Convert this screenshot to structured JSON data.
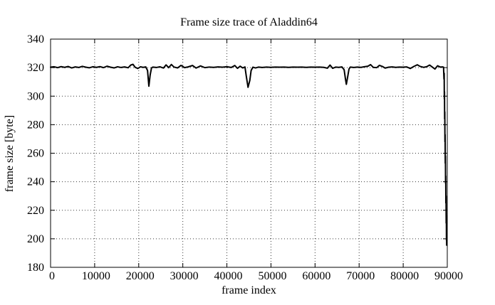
{
  "chart_data": {
    "type": "line",
    "title": "Frame size trace of Aladdin64",
    "xlabel": "frame index",
    "ylabel": "frame size [byte]",
    "xlim": [
      0,
      90000
    ],
    "ylim": [
      180,
      340
    ],
    "xticks": [
      0,
      10000,
      20000,
      30000,
      40000,
      50000,
      60000,
      70000,
      80000,
      90000
    ],
    "yticks": [
      180,
      200,
      220,
      240,
      260,
      280,
      300,
      320,
      340
    ],
    "grid": true,
    "legend": "none",
    "colors": {
      "line": "#000000",
      "frame": "#000000",
      "grid": "#3a3a3a",
      "text": "#000000",
      "background": "#ffffff"
    },
    "series_name": "frame size",
    "points": [
      [
        0,
        320.3
      ],
      [
        800,
        320.6
      ],
      [
        1600,
        320.0
      ],
      [
        2400,
        320.7
      ],
      [
        3200,
        320.2
      ],
      [
        4000,
        320.8
      ],
      [
        4800,
        319.8
      ],
      [
        5600,
        320.5
      ],
      [
        6400,
        320.1
      ],
      [
        7200,
        320.9
      ],
      [
        8000,
        320.3
      ],
      [
        8800,
        319.9
      ],
      [
        9600,
        320.6
      ],
      [
        10400,
        320.2
      ],
      [
        11200,
        320.7
      ],
      [
        12000,
        320.0
      ],
      [
        12800,
        321.0
      ],
      [
        13600,
        320.3
      ],
      [
        14400,
        319.8
      ],
      [
        15200,
        320.6
      ],
      [
        16000,
        320.1
      ],
      [
        16800,
        320.5
      ],
      [
        17600,
        319.9
      ],
      [
        18200,
        321.8
      ],
      [
        18700,
        322.3
      ],
      [
        19200,
        320.2
      ],
      [
        19800,
        319.4
      ],
      [
        20400,
        320.6
      ],
      [
        21000,
        320.2
      ],
      [
        21600,
        320.5
      ],
      [
        22000,
        318.0
      ],
      [
        22300,
        307.0
      ],
      [
        22600,
        315.0
      ],
      [
        22900,
        319.8
      ],
      [
        23200,
        320.4
      ],
      [
        24000,
        320.1
      ],
      [
        24800,
        320.6
      ],
      [
        25600,
        319.7
      ],
      [
        26200,
        321.9
      ],
      [
        26800,
        320.0
      ],
      [
        27400,
        322.2
      ],
      [
        28000,
        320.4
      ],
      [
        28800,
        319.8
      ],
      [
        29600,
        321.6
      ],
      [
        30400,
        320.0
      ],
      [
        31200,
        320.5
      ],
      [
        32200,
        321.5
      ],
      [
        33000,
        319.7
      ],
      [
        34000,
        321.2
      ],
      [
        35000,
        320.0
      ],
      [
        36000,
        320.4
      ],
      [
        37000,
        320.2
      ],
      [
        38000,
        320.5
      ],
      [
        39000,
        320.3
      ],
      [
        40000,
        320.6
      ],
      [
        41000,
        320.1
      ],
      [
        41800,
        321.5
      ],
      [
        42400,
        319.5
      ],
      [
        43000,
        321.0
      ],
      [
        43600,
        319.8
      ],
      [
        44100,
        320.5
      ],
      [
        44400,
        314.0
      ],
      [
        44800,
        306.2
      ],
      [
        45200,
        311.0
      ],
      [
        45500,
        318.0
      ],
      [
        45900,
        320.3
      ],
      [
        46500,
        319.8
      ],
      [
        47200,
        320.4
      ],
      [
        48000,
        320.1
      ],
      [
        49000,
        320.4
      ],
      [
        50000,
        320.2
      ],
      [
        51000,
        320.4
      ],
      [
        52000,
        320.3
      ],
      [
        53000,
        320.4
      ],
      [
        54000,
        320.2
      ],
      [
        55000,
        320.4
      ],
      [
        56000,
        320.3
      ],
      [
        57000,
        320.4
      ],
      [
        58000,
        320.2
      ],
      [
        59000,
        320.4
      ],
      [
        60000,
        320.3
      ],
      [
        61000,
        320.4
      ],
      [
        62000,
        320.2
      ],
      [
        62800,
        319.6
      ],
      [
        63400,
        321.8
      ],
      [
        64000,
        319.5
      ],
      [
        64700,
        320.4
      ],
      [
        65400,
        320.2
      ],
      [
        66100,
        320.5
      ],
      [
        66600,
        318.5
      ],
      [
        66900,
        312.0
      ],
      [
        67100,
        308.3
      ],
      [
        67400,
        313.5
      ],
      [
        67700,
        319.0
      ],
      [
        68000,
        320.4
      ],
      [
        68800,
        320.1
      ],
      [
        69600,
        320.4
      ],
      [
        70400,
        320.2
      ],
      [
        71200,
        320.6
      ],
      [
        72000,
        321.0
      ],
      [
        72600,
        322.1
      ],
      [
        73200,
        320.2
      ],
      [
        74000,
        320.0
      ],
      [
        74600,
        321.6
      ],
      [
        75300,
        320.8
      ],
      [
        75900,
        319.7
      ],
      [
        76700,
        320.3
      ],
      [
        77500,
        320.5
      ],
      [
        78300,
        320.2
      ],
      [
        79100,
        320.4
      ],
      [
        80000,
        320.3
      ],
      [
        80800,
        320.5
      ],
      [
        81600,
        319.4
      ],
      [
        82400,
        320.8
      ],
      [
        83200,
        322.0
      ],
      [
        83800,
        320.9
      ],
      [
        84600,
        320.2
      ],
      [
        85300,
        320.6
      ],
      [
        86000,
        321.8
      ],
      [
        86600,
        320.4
      ],
      [
        87200,
        319.0
      ],
      [
        87800,
        321.3
      ],
      [
        88400,
        320.4
      ],
      [
        88900,
        320.5
      ],
      [
        89150,
        320.3
      ],
      [
        89250,
        312.0
      ],
      [
        89300,
        316.0
      ],
      [
        89330,
        298.0
      ],
      [
        89370,
        303.0
      ],
      [
        89400,
        284.0
      ],
      [
        89440,
        289.0
      ],
      [
        89470,
        268.0
      ],
      [
        89510,
        273.0
      ],
      [
        89540,
        253.0
      ],
      [
        89580,
        258.0
      ],
      [
        89610,
        239.0
      ],
      [
        89650,
        244.0
      ],
      [
        89680,
        225.0
      ],
      [
        89720,
        230.0
      ],
      [
        89750,
        211.0
      ],
      [
        89790,
        216.0
      ],
      [
        89810,
        199.0
      ],
      [
        89840,
        204.0
      ],
      [
        89860,
        195.5
      ]
    ]
  }
}
